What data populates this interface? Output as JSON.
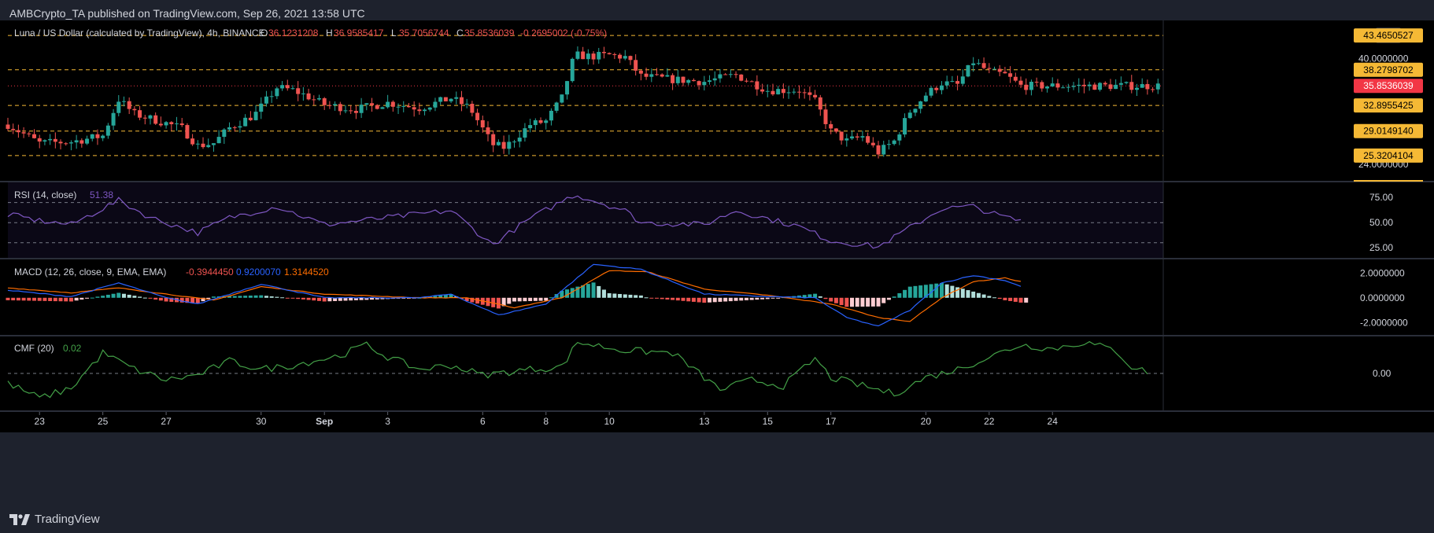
{
  "header": {
    "published": "AMBCrypto_TA published on TradingView.com, Sep 26, 2021 13:58 UTC"
  },
  "footer": {
    "brand": "TradingView"
  },
  "colors": {
    "background": "#000000",
    "frame": "#1e222d",
    "up": "#26a69a",
    "down": "#ef5350",
    "sr_line": "#f5b935",
    "price_label": "#f23645",
    "rsi_line": "#7e57c2",
    "macd_line": "#2962ff",
    "signal_line": "#ff6d00",
    "cmf_line": "#43a047",
    "text": "#d1d4dc"
  },
  "chart_data": [
    {
      "type": "candlestick",
      "title": "Luna / US Dollar (calculated by TradingView), 4h, BINANCE",
      "ohlc_labels": {
        "o_key": "O",
        "o": "36.1231208",
        "h_key": "H",
        "h": "36.9585417",
        "l_key": "L",
        "l": "35.7056744",
        "c_key": "C",
        "c": "35.8536039",
        "change": "-0.2695002 (-0.75%)"
      },
      "currency": "USD",
      "y_ticks": [
        "40.0000000",
        "24.0000000"
      ],
      "ylim": [
        21.5,
        45.5
      ],
      "support_resistance": [
        {
          "value": 43.4650527,
          "label": "43.4650527"
        },
        {
          "value": 38.2798702,
          "label": "38.2798702"
        },
        {
          "value": 32.8955425,
          "label": "32.8955425"
        },
        {
          "value": 29.014914,
          "label": "29.0149140"
        },
        {
          "value": 25.3204104,
          "label": "25.3204104"
        }
      ],
      "last_price": {
        "value": 35.8536039,
        "label": "35.8536039"
      },
      "anchors": [
        {
          "d": 0,
          "p": 30.0
        },
        {
          "d": 1,
          "p": 27.2
        },
        {
          "d": 2,
          "p": 27.4
        },
        {
          "d": 3,
          "p": 28.3
        },
        {
          "d": 3.5,
          "p": 33.8
        },
        {
          "d": 4.0,
          "p": 31.6
        },
        {
          "d": 5,
          "p": 30.2
        },
        {
          "d": 5.5,
          "p": 29.4
        },
        {
          "d": 6.0,
          "p": 26.8
        },
        {
          "d": 6.5,
          "p": 27.2
        },
        {
          "d": 7,
          "p": 29.5
        },
        {
          "d": 7.8,
          "p": 31.5
        },
        {
          "d": 8.5,
          "p": 35.6
        },
        {
          "d": 9.0,
          "p": 35.2
        },
        {
          "d": 9.5,
          "p": 34.2
        },
        {
          "d": 10,
          "p": 33.0
        },
        {
          "d": 11,
          "p": 32.3
        },
        {
          "d": 12,
          "p": 33.3
        },
        {
          "d": 13,
          "p": 32.5
        },
        {
          "d": 14,
          "p": 34.0
        },
        {
          "d": 14.6,
          "p": 32.5
        },
        {
          "d": 15.3,
          "p": 27.0
        },
        {
          "d": 15.7,
          "p": 26.5
        },
        {
          "d": 16.5,
          "p": 30.0
        },
        {
          "d": 17,
          "p": 30.5
        },
        {
          "d": 17.5,
          "p": 34.0
        },
        {
          "d": 17.9,
          "p": 40.5
        },
        {
          "d": 18.4,
          "p": 40.3
        },
        {
          "d": 19.0,
          "p": 40.5
        },
        {
          "d": 19.5,
          "p": 40.2
        },
        {
          "d": 20,
          "p": 37.3
        },
        {
          "d": 21,
          "p": 36.8
        },
        {
          "d": 22,
          "p": 36.5
        },
        {
          "d": 23,
          "p": 37.5
        },
        {
          "d": 24,
          "p": 35.2
        },
        {
          "d": 25,
          "p": 35.2
        },
        {
          "d": 25.5,
          "p": 33.5
        },
        {
          "d": 26,
          "p": 29.0
        },
        {
          "d": 26.5,
          "p": 27.5
        },
        {
          "d": 27,
          "p": 28.2
        },
        {
          "d": 27.5,
          "p": 25.8
        },
        {
          "d": 28,
          "p": 27.5
        },
        {
          "d": 28.5,
          "p": 32.0
        },
        {
          "d": 29,
          "p": 34.5
        },
        {
          "d": 29.5,
          "p": 36.3
        },
        {
          "d": 30,
          "p": 36.0
        },
        {
          "d": 30.5,
          "p": 39.5
        },
        {
          "d": 31,
          "p": 38.0
        },
        {
          "d": 31.5,
          "p": 37.5
        },
        {
          "d": 32.0,
          "p": 35.85
        }
      ],
      "x_ticks": [
        {
          "d": 1,
          "label": "23"
        },
        {
          "d": 3,
          "label": "25"
        },
        {
          "d": 5,
          "label": "27"
        },
        {
          "d": 8,
          "label": "30"
        },
        {
          "d": 10,
          "label": "Sep"
        },
        {
          "d": 12,
          "label": "3"
        },
        {
          "d": 15,
          "label": "6"
        },
        {
          "d": 17,
          "label": "8"
        },
        {
          "d": 19,
          "label": "10"
        },
        {
          "d": 22,
          "label": "13"
        },
        {
          "d": 24,
          "label": "15"
        },
        {
          "d": 26,
          "label": "17"
        },
        {
          "d": 29,
          "label": "20"
        },
        {
          "d": 31,
          "label": "22"
        },
        {
          "d": 33,
          "label": "24"
        }
      ]
    },
    {
      "type": "line",
      "title": "RSI (14, close)",
      "value_label": "51.38",
      "ylim": [
        15,
        90
      ],
      "levels": [
        70,
        50,
        30
      ],
      "y_ticks": [
        "75.00",
        "50.00",
        "25.00"
      ],
      "anchors": [
        {
          "d": 0,
          "v": 58
        },
        {
          "d": 1,
          "v": 52
        },
        {
          "d": 2,
          "v": 48
        },
        {
          "d": 3.5,
          "v": 72
        },
        {
          "d": 4.5,
          "v": 55
        },
        {
          "d": 6,
          "v": 40
        },
        {
          "d": 7,
          "v": 55
        },
        {
          "d": 8.5,
          "v": 66
        },
        {
          "d": 10,
          "v": 48
        },
        {
          "d": 12,
          "v": 55
        },
        {
          "d": 14,
          "v": 62
        },
        {
          "d": 15.3,
          "v": 28
        },
        {
          "d": 16.5,
          "v": 54
        },
        {
          "d": 17.9,
          "v": 78
        },
        {
          "d": 19.5,
          "v": 62
        },
        {
          "d": 20,
          "v": 50
        },
        {
          "d": 22,
          "v": 48
        },
        {
          "d": 23,
          "v": 62
        },
        {
          "d": 25,
          "v": 46
        },
        {
          "d": 26,
          "v": 32
        },
        {
          "d": 27.5,
          "v": 26
        },
        {
          "d": 28.5,
          "v": 45
        },
        {
          "d": 29.5,
          "v": 64
        },
        {
          "d": 30.5,
          "v": 66
        },
        {
          "d": 31.2,
          "v": 58
        },
        {
          "d": 32.0,
          "v": 51.38
        }
      ]
    },
    {
      "type": "line",
      "title": "MACD (12, 26, close, 9, EMA, EMA)",
      "values": [
        "-0.3944450",
        "0.9200070",
        "1.3144520"
      ],
      "ylim": [
        -3.0,
        3.1
      ],
      "y_ticks": [
        "2.0000000",
        "0.0000000",
        "-2.0000000"
      ],
      "macd_anchors": [
        {
          "d": 0,
          "v": 0.6
        },
        {
          "d": 2,
          "v": 0.1
        },
        {
          "d": 3.5,
          "v": 1.2
        },
        {
          "d": 5,
          "v": 0.0
        },
        {
          "d": 6,
          "v": -0.5
        },
        {
          "d": 8,
          "v": 1.1
        },
        {
          "d": 10,
          "v": 0.0
        },
        {
          "d": 13,
          "v": 0.0
        },
        {
          "d": 14,
          "v": 0.3
        },
        {
          "d": 15.5,
          "v": -1.4
        },
        {
          "d": 17,
          "v": -0.5
        },
        {
          "d": 18.5,
          "v": 2.7
        },
        {
          "d": 20,
          "v": 2.3
        },
        {
          "d": 22,
          "v": 0.3
        },
        {
          "d": 24,
          "v": 0.1
        },
        {
          "d": 25.5,
          "v": 0.0
        },
        {
          "d": 26.5,
          "v": -1.6
        },
        {
          "d": 27.5,
          "v": -2.3
        },
        {
          "d": 28.5,
          "v": -1.0
        },
        {
          "d": 29.5,
          "v": 1.2
        },
        {
          "d": 30.5,
          "v": 1.8
        },
        {
          "d": 31.5,
          "v": 1.4
        },
        {
          "d": 32.0,
          "v": 0.92
        }
      ],
      "signal_anchors": [
        {
          "d": 0,
          "v": 0.8
        },
        {
          "d": 2,
          "v": 0.4
        },
        {
          "d": 3.5,
          "v": 0.8
        },
        {
          "d": 5,
          "v": 0.3
        },
        {
          "d": 6.5,
          "v": -0.2
        },
        {
          "d": 8,
          "v": 0.9
        },
        {
          "d": 10,
          "v": 0.3
        },
        {
          "d": 13,
          "v": 0.0
        },
        {
          "d": 14.5,
          "v": 0.0
        },
        {
          "d": 16,
          "v": -0.8
        },
        {
          "d": 17.5,
          "v": 0.0
        },
        {
          "d": 19,
          "v": 2.2
        },
        {
          "d": 20.2,
          "v": 2.1
        },
        {
          "d": 22,
          "v": 0.7
        },
        {
          "d": 24,
          "v": 0.2
        },
        {
          "d": 26,
          "v": -0.5
        },
        {
          "d": 27.5,
          "v": -1.6
        },
        {
          "d": 28.5,
          "v": -1.9
        },
        {
          "d": 29.5,
          "v": 0.0
        },
        {
          "d": 30.5,
          "v": 1.3
        },
        {
          "d": 31.5,
          "v": 1.6
        },
        {
          "d": 32.0,
          "v": 1.31
        }
      ]
    },
    {
      "type": "line",
      "title": "CMF (20)",
      "value_label": "0.02",
      "ylim": [
        -0.45,
        0.45
      ],
      "level": 0,
      "y_ticks": [
        "0.00"
      ],
      "anchors": [
        {
          "d": 0,
          "v": -0.12
        },
        {
          "d": 1,
          "v": -0.3
        },
        {
          "d": 2,
          "v": -0.18
        },
        {
          "d": 3.0,
          "v": 0.25
        },
        {
          "d": 4,
          "v": 0.05
        },
        {
          "d": 5,
          "v": -0.08
        },
        {
          "d": 6,
          "v": -0.02
        },
        {
          "d": 7,
          "v": 0.15
        },
        {
          "d": 8,
          "v": 0.05
        },
        {
          "d": 9,
          "v": 0.1
        },
        {
          "d": 10.5,
          "v": 0.22
        },
        {
          "d": 11.3,
          "v": 0.35
        },
        {
          "d": 12,
          "v": 0.2
        },
        {
          "d": 13,
          "v": 0.05
        },
        {
          "d": 14,
          "v": 0.1
        },
        {
          "d": 15,
          "v": -0.02
        },
        {
          "d": 16.5,
          "v": 0.05
        },
        {
          "d": 17.5,
          "v": 0.08
        },
        {
          "d": 18,
          "v": 0.38
        },
        {
          "d": 19.5,
          "v": 0.28
        },
        {
          "d": 21,
          "v": 0.25
        },
        {
          "d": 22.5,
          "v": -0.2
        },
        {
          "d": 23.5,
          "v": -0.08
        },
        {
          "d": 24.5,
          "v": -0.15
        },
        {
          "d": 25.5,
          "v": 0.18
        },
        {
          "d": 26,
          "v": -0.05
        },
        {
          "d": 27,
          "v": -0.15
        },
        {
          "d": 28,
          "v": -0.25
        },
        {
          "d": 29,
          "v": -0.05
        },
        {
          "d": 30,
          "v": 0.05
        },
        {
          "d": 31.0,
          "v": 0.2
        },
        {
          "d": 32.0,
          "v": 0.35
        },
        {
          "d": 33,
          "v": 0.3
        },
        {
          "d": 34,
          "v": 0.38
        },
        {
          "d": 35,
          "v": 0.28
        },
        {
          "d": 35.5,
          "v": 0.08
        },
        {
          "d": 36,
          "v": 0.02
        }
      ]
    }
  ]
}
